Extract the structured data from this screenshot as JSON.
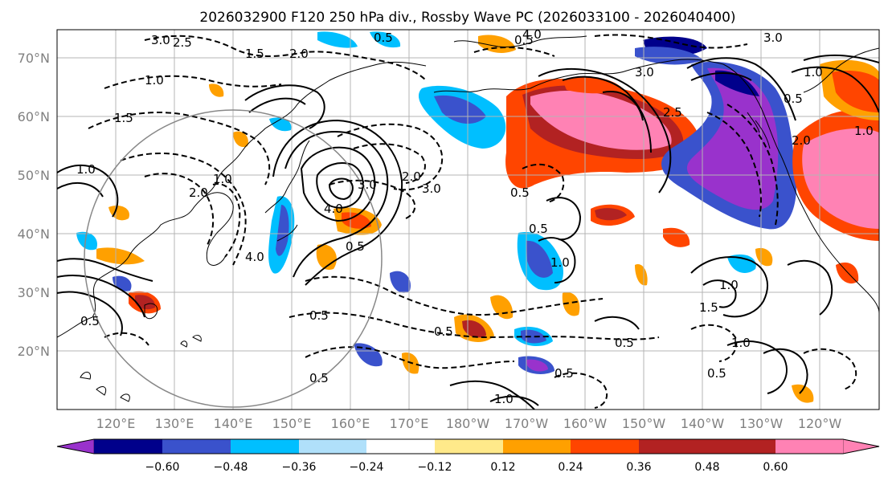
{
  "title": "2026032900 F120 250 hPa div., Rossby Wave PC (2026033100 - 2026040400)",
  "lat_labels": [
    "70°N",
    "60°N",
    "50°N",
    "40°N",
    "30°N",
    "20°N"
  ],
  "lon_labels": [
    "120°E",
    "130°E",
    "140°E",
    "150°E",
    "160°E",
    "170°E",
    "180°W",
    "170°W",
    "160°W",
    "150°W",
    "140°W",
    "130°W",
    "120°W"
  ],
  "colorbar": {
    "ticks": [
      "−0.60",
      "−0.48",
      "−0.36",
      "−0.24",
      "−0.12",
      "0.12",
      "0.24",
      "0.36",
      "0.48",
      "0.60"
    ],
    "colors": [
      "#9932cc",
      "#00008b",
      "#3a52cc",
      "#00bfff",
      "#b0e0fa",
      "#ffffff",
      "#ffe98a",
      "#ffa000",
      "#ff4500",
      "#b22222",
      "#ff82b4"
    ]
  },
  "contour_labels": [
    "3.0",
    "2.0",
    "1.5",
    "0.5",
    "1.0",
    "2.5",
    "1.5",
    "1.0",
    "2.0",
    "1.0",
    "3.0",
    "4.0",
    "4.0",
    "0.5",
    "2.0",
    "3.0",
    "0.5",
    "1.0",
    "0.5",
    "0.5",
    "1.0",
    "0.5",
    "0.5",
    "1.0",
    "0.5",
    "0.5",
    "4.0",
    "3.0",
    "2.5",
    "2.0",
    "0.5",
    "0.5",
    "1.0",
    "3.0",
    "1.0",
    "1.5",
    "1.0",
    "0.5",
    "0.5"
  ]
}
